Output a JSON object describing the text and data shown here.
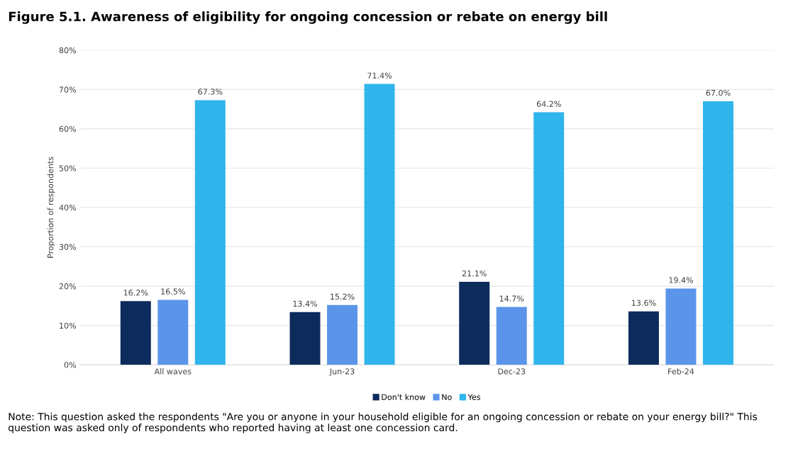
{
  "chart_data": {
    "type": "bar",
    "title": "Figure 5.1. Awareness of eligibility for ongoing concession or rebate on energy bill",
    "ylabel": "Proportion of respondents",
    "categories": [
      "All waves",
      "Jun-23",
      "Dec-23",
      "Feb-24"
    ],
    "series": [
      {
        "name": "Don't know",
        "color": "#0d2b5c",
        "values": [
          16.2,
          13.4,
          21.1,
          13.6
        ],
        "value_labels": [
          "16.2%",
          "13.4%",
          "21.1%",
          "13.6%"
        ]
      },
      {
        "name": "No",
        "color": "#5b95ea",
        "values": [
          16.5,
          15.2,
          14.7,
          19.4
        ],
        "value_labels": [
          "16.5%",
          "15.2%",
          "14.7%",
          "19.4%"
        ]
      },
      {
        "name": "Yes",
        "color": "#2fb4ec",
        "values": [
          67.3,
          71.4,
          64.2,
          67.0
        ],
        "value_labels": [
          "67.3%",
          "71.4%",
          "64.2%",
          "67.0%"
        ]
      }
    ],
    "ylim": [
      0,
      80
    ],
    "yticks": [
      {
        "value": 0,
        "label": "0%"
      },
      {
        "value": 10,
        "label": "10%"
      },
      {
        "value": 20,
        "label": "20%"
      },
      {
        "value": 30,
        "label": "30%"
      },
      {
        "value": 40,
        "label": "40%"
      },
      {
        "value": 50,
        "label": "50%"
      },
      {
        "value": 60,
        "label": "60%"
      },
      {
        "value": 70,
        "label": "70%"
      },
      {
        "value": 80,
        "label": "80%"
      }
    ],
    "grid": "y",
    "legend": "bottom",
    "annotations": [
      "Note: This question asked the respondents \"Are you or anyone in your household eligible for an ongoing concession or rebate on your energy bill?\" This question was asked only of respondents who reported having at least one concession card."
    ]
  }
}
